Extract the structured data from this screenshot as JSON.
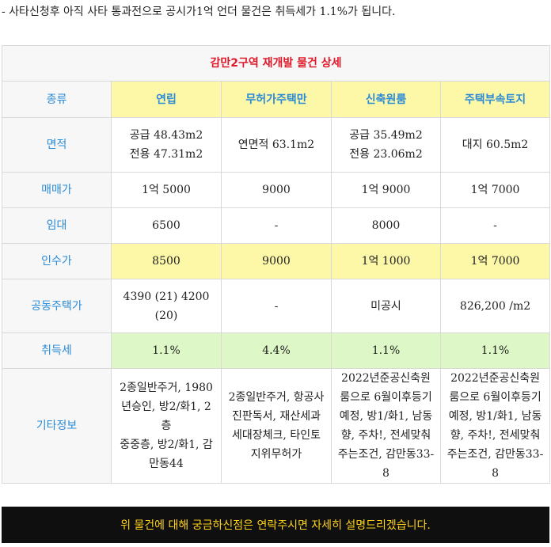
{
  "intro": "- 사타신청후 아직 사타 통과전으로 공시가1억 언더 물건은 취득세가 1.1%가 됩니다.",
  "table": {
    "title": "감만2구역 재개발 물건 상세",
    "corner": "종류",
    "columns": [
      "연립",
      "무허가주택만",
      "신축원룸",
      "주택부속토지"
    ],
    "rows": [
      {
        "label": "면적",
        "cells": [
          [
            "공급 48.43m2",
            "전용 47.31m2"
          ],
          [
            "연면적 63.1m2"
          ],
          [
            "공급 35.49m2",
            "전용 23.06m2"
          ],
          [
            "대지 60.5m2"
          ]
        ]
      },
      {
        "label": "매매가",
        "cells": [
          [
            "1억 5000"
          ],
          [
            "9000"
          ],
          [
            "1억 9000"
          ],
          [
            "1억 7000"
          ]
        ]
      },
      {
        "label": "임대",
        "cells": [
          [
            "6500"
          ],
          [
            "-"
          ],
          [
            "8000"
          ],
          [
            "-"
          ]
        ]
      },
      {
        "label": "인수가",
        "cells": [
          [
            "8500"
          ],
          [
            "9000"
          ],
          [
            "1억 1000"
          ],
          [
            "1억 7000"
          ]
        ]
      },
      {
        "label": "공동주택가",
        "cells": [
          [
            "4390 (21) 4200",
            "(20)"
          ],
          [
            "-"
          ],
          [
            "미공시"
          ],
          [
            "826,200 /m2"
          ]
        ]
      },
      {
        "label": "취득세",
        "cells": [
          [
            "1.1%"
          ],
          [
            "4.4%"
          ],
          [
            "1.1%"
          ],
          [
            "1.1%"
          ]
        ]
      },
      {
        "label": "기타정보",
        "cells": [
          [
            "2종일반주거, 1980",
            "년승인, 방2/화1, 2층",
            "중중층, 방2/화1, 감",
            "만동44"
          ],
          [
            "2종일반주거, 항공사",
            "진판독서, 재산세과",
            "세대장체크, 타인토",
            "지위무허가"
          ],
          [
            "2022년준공신축원",
            "룸으로 6월이후등기",
            "예정, 방1/화1, 남동",
            "향, 주차!, 전세맞춰",
            "주는조건, 감만동33-",
            "8"
          ],
          [
            "2022년준공신축원",
            "룸으로 6월이후등기",
            "예정, 방1/화1, 남동",
            "향, 주차!, 전세맞춰",
            "주는조건, 감만동33-",
            "8"
          ]
        ]
      }
    ]
  },
  "footer": "위 물건에 대해 궁금하신점은 연락주시면 자세히 설명드리겠습니다."
}
